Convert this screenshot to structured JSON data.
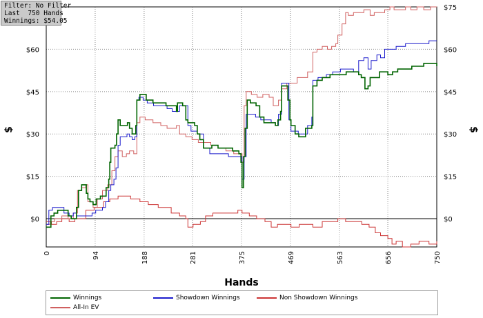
{
  "info": {
    "filter": "Filter: No Filter",
    "hands": "Last  750 Hands",
    "winnings": "Winnings: $54.05"
  },
  "chart_data": {
    "type": "line",
    "xlabel": "Hands",
    "ylabel": "$",
    "ylabel_right": "$",
    "xlim": [
      0,
      750
    ],
    "ylim": [
      -10,
      75
    ],
    "x_ticks": [
      0,
      94,
      188,
      281,
      375,
      469,
      563,
      656,
      750
    ],
    "y_ticks": [
      0,
      15,
      30,
      45,
      60,
      75
    ],
    "y_tick_labels": [
      "$0",
      "$15",
      "$30",
      "$45",
      "$60",
      "$75"
    ],
    "grid": true,
    "legend_position": "bottom",
    "series": [
      {
        "name": "Winnings",
        "color": "#006400",
        "points": [
          [
            0,
            -3
          ],
          [
            6,
            -3
          ],
          [
            9,
            1
          ],
          [
            15,
            2
          ],
          [
            22,
            3
          ],
          [
            38,
            3
          ],
          [
            42,
            1
          ],
          [
            48,
            0
          ],
          [
            55,
            0
          ],
          [
            58,
            4
          ],
          [
            62,
            10
          ],
          [
            68,
            12
          ],
          [
            74,
            12
          ],
          [
            77,
            9
          ],
          [
            80,
            7
          ],
          [
            84,
            6
          ],
          [
            90,
            5
          ],
          [
            96,
            7
          ],
          [
            104,
            8
          ],
          [
            110,
            8
          ],
          [
            115,
            11
          ],
          [
            120,
            14
          ],
          [
            122,
            20
          ],
          [
            124,
            25
          ],
          [
            132,
            26
          ],
          [
            135,
            30
          ],
          [
            138,
            35
          ],
          [
            142,
            33
          ],
          [
            150,
            33
          ],
          [
            156,
            34
          ],
          [
            160,
            32
          ],
          [
            165,
            30
          ],
          [
            168,
            30
          ],
          [
            172,
            33
          ],
          [
            174,
            42
          ],
          [
            180,
            44
          ],
          [
            186,
            44
          ],
          [
            192,
            42
          ],
          [
            205,
            41
          ],
          [
            218,
            41
          ],
          [
            230,
            40
          ],
          [
            242,
            40
          ],
          [
            250,
            38
          ],
          [
            252,
            41
          ],
          [
            262,
            40
          ],
          [
            268,
            35
          ],
          [
            272,
            34
          ],
          [
            285,
            33
          ],
          [
            290,
            30
          ],
          [
            295,
            28
          ],
          [
            300,
            28
          ],
          [
            302,
            25
          ],
          [
            312,
            25
          ],
          [
            318,
            26
          ],
          [
            326,
            26
          ],
          [
            330,
            25
          ],
          [
            345,
            25
          ],
          [
            358,
            24
          ],
          [
            370,
            23
          ],
          [
            374,
            20
          ],
          [
            376,
            11
          ],
          [
            379,
            22
          ],
          [
            382,
            32
          ],
          [
            386,
            42
          ],
          [
            392,
            41
          ],
          [
            403,
            40
          ],
          [
            410,
            36
          ],
          [
            418,
            34
          ],
          [
            432,
            34
          ],
          [
            440,
            33
          ],
          [
            445,
            35
          ],
          [
            450,
            38
          ],
          [
            452,
            47
          ],
          [
            460,
            47
          ],
          [
            464,
            42
          ],
          [
            468,
            35
          ],
          [
            470,
            33
          ],
          [
            474,
            33
          ],
          [
            478,
            30
          ],
          [
            485,
            29
          ],
          [
            492,
            29
          ],
          [
            498,
            32
          ],
          [
            505,
            32
          ],
          [
            510,
            33
          ],
          [
            512,
            47
          ],
          [
            520,
            49
          ],
          [
            530,
            50
          ],
          [
            545,
            51
          ],
          [
            560,
            51
          ],
          [
            576,
            52
          ],
          [
            590,
            52
          ],
          [
            600,
            51
          ],
          [
            605,
            50
          ],
          [
            612,
            46
          ],
          [
            618,
            47
          ],
          [
            622,
            50
          ],
          [
            640,
            52
          ],
          [
            648,
            52
          ],
          [
            656,
            51
          ],
          [
            665,
            52
          ],
          [
            675,
            53
          ],
          [
            690,
            53
          ],
          [
            702,
            54
          ],
          [
            715,
            54
          ],
          [
            725,
            55
          ],
          [
            738,
            55
          ],
          [
            745,
            55
          ],
          [
            750,
            54
          ]
        ]
      },
      {
        "name": "Showdown Winnings",
        "color": "#1a1acc",
        "points": [
          [
            0,
            -2
          ],
          [
            5,
            3
          ],
          [
            10,
            3
          ],
          [
            12,
            4
          ],
          [
            30,
            4
          ],
          [
            34,
            2
          ],
          [
            44,
            1
          ],
          [
            52,
            2
          ],
          [
            58,
            1
          ],
          [
            64,
            1
          ],
          [
            84,
            1
          ],
          [
            88,
            2
          ],
          [
            95,
            3
          ],
          [
            108,
            4
          ],
          [
            114,
            6
          ],
          [
            120,
            10
          ],
          [
            124,
            12
          ],
          [
            130,
            14
          ],
          [
            134,
            18
          ],
          [
            138,
            26
          ],
          [
            142,
            29
          ],
          [
            150,
            29
          ],
          [
            155,
            30
          ],
          [
            160,
            29
          ],
          [
            165,
            28
          ],
          [
            170,
            29
          ],
          [
            174,
            42
          ],
          [
            178,
            43
          ],
          [
            186,
            42
          ],
          [
            194,
            41
          ],
          [
            206,
            40
          ],
          [
            220,
            40
          ],
          [
            232,
            39
          ],
          [
            242,
            38
          ],
          [
            250,
            38
          ],
          [
            256,
            40
          ],
          [
            266,
            40
          ],
          [
            272,
            33
          ],
          [
            278,
            31
          ],
          [
            290,
            30
          ],
          [
            302,
            25
          ],
          [
            314,
            23
          ],
          [
            330,
            23
          ],
          [
            350,
            22
          ],
          [
            362,
            22
          ],
          [
            370,
            22
          ],
          [
            376,
            14
          ],
          [
            380,
            22
          ],
          [
            384,
            37
          ],
          [
            390,
            37
          ],
          [
            402,
            36
          ],
          [
            412,
            35
          ],
          [
            420,
            35
          ],
          [
            432,
            34
          ],
          [
            440,
            33
          ],
          [
            446,
            37
          ],
          [
            452,
            48
          ],
          [
            460,
            48
          ],
          [
            466,
            35
          ],
          [
            470,
            31
          ],
          [
            476,
            31
          ],
          [
            484,
            30
          ],
          [
            496,
            30
          ],
          [
            502,
            33
          ],
          [
            510,
            36
          ],
          [
            512,
            49
          ],
          [
            522,
            50
          ],
          [
            538,
            51
          ],
          [
            550,
            52
          ],
          [
            565,
            53
          ],
          [
            578,
            53
          ],
          [
            590,
            52
          ],
          [
            600,
            56
          ],
          [
            610,
            57
          ],
          [
            618,
            53
          ],
          [
            624,
            56
          ],
          [
            635,
            58
          ],
          [
            642,
            57
          ],
          [
            650,
            60
          ],
          [
            660,
            60
          ],
          [
            672,
            61
          ],
          [
            690,
            62
          ],
          [
            705,
            62
          ],
          [
            720,
            62
          ],
          [
            735,
            63
          ],
          [
            750,
            63
          ]
        ]
      },
      {
        "name": "Non Showdown Winnings",
        "color": "#cc3333",
        "points": [
          [
            0,
            -1
          ],
          [
            10,
            -2
          ],
          [
            20,
            -1
          ],
          [
            30,
            0
          ],
          [
            44,
            -1
          ],
          [
            55,
            0
          ],
          [
            70,
            0
          ],
          [
            76,
            3
          ],
          [
            92,
            4
          ],
          [
            110,
            6
          ],
          [
            122,
            7
          ],
          [
            138,
            8
          ],
          [
            150,
            8
          ],
          [
            162,
            7
          ],
          [
            180,
            6
          ],
          [
            196,
            5
          ],
          [
            215,
            4
          ],
          [
            240,
            2
          ],
          [
            256,
            1
          ],
          [
            268,
            0
          ],
          [
            272,
            -3
          ],
          [
            282,
            -2
          ],
          [
            296,
            -1
          ],
          [
            306,
            1
          ],
          [
            320,
            2
          ],
          [
            338,
            2
          ],
          [
            352,
            2
          ],
          [
            368,
            3
          ],
          [
            376,
            2
          ],
          [
            390,
            1
          ],
          [
            404,
            0
          ],
          [
            420,
            -1
          ],
          [
            432,
            -3
          ],
          [
            444,
            -2
          ],
          [
            458,
            -2
          ],
          [
            470,
            -3
          ],
          [
            486,
            -2
          ],
          [
            500,
            -2
          ],
          [
            512,
            -3
          ],
          [
            530,
            -1
          ],
          [
            545,
            -1
          ],
          [
            560,
            0
          ],
          [
            575,
            -1
          ],
          [
            592,
            -1
          ],
          [
            606,
            -2
          ],
          [
            620,
            -3
          ],
          [
            632,
            -5
          ],
          [
            642,
            -6
          ],
          [
            656,
            -7
          ],
          [
            664,
            -9
          ],
          [
            672,
            -8
          ],
          [
            684,
            -10
          ],
          [
            700,
            -9
          ],
          [
            716,
            -8
          ],
          [
            735,
            -9
          ],
          [
            750,
            -8
          ]
        ]
      },
      {
        "name": "All-In EV",
        "color": "#d06060",
        "points": [
          [
            0,
            -2
          ],
          [
            8,
            -1
          ],
          [
            16,
            0
          ],
          [
            30,
            1
          ],
          [
            42,
            0
          ],
          [
            52,
            2
          ],
          [
            60,
            10
          ],
          [
            68,
            11
          ],
          [
            76,
            12
          ],
          [
            80,
            6
          ],
          [
            90,
            4
          ],
          [
            98,
            7
          ],
          [
            108,
            10
          ],
          [
            118,
            12
          ],
          [
            126,
            17
          ],
          [
            132,
            22
          ],
          [
            138,
            24
          ],
          [
            146,
            22
          ],
          [
            154,
            23
          ],
          [
            160,
            24
          ],
          [
            168,
            23
          ],
          [
            174,
            34
          ],
          [
            180,
            36
          ],
          [
            190,
            35
          ],
          [
            205,
            34
          ],
          [
            220,
            33
          ],
          [
            232,
            32
          ],
          [
            244,
            32
          ],
          [
            250,
            33
          ],
          [
            256,
            30
          ],
          [
            268,
            29
          ],
          [
            280,
            28
          ],
          [
            292,
            27
          ],
          [
            302,
            27
          ],
          [
            316,
            26
          ],
          [
            330,
            25
          ],
          [
            345,
            24
          ],
          [
            360,
            23
          ],
          [
            372,
            23
          ],
          [
            376,
            20
          ],
          [
            380,
            40
          ],
          [
            384,
            45
          ],
          [
            394,
            44
          ],
          [
            405,
            43
          ],
          [
            416,
            44
          ],
          [
            428,
            43
          ],
          [
            436,
            40
          ],
          [
            446,
            42
          ],
          [
            452,
            46
          ],
          [
            462,
            48
          ],
          [
            472,
            48
          ],
          [
            482,
            50
          ],
          [
            492,
            50
          ],
          [
            502,
            52
          ],
          [
            512,
            59
          ],
          [
            520,
            60
          ],
          [
            530,
            61
          ],
          [
            540,
            60
          ],
          [
            548,
            61
          ],
          [
            556,
            62
          ],
          [
            560,
            65
          ],
          [
            568,
            69
          ],
          [
            575,
            73
          ],
          [
            580,
            72
          ],
          [
            590,
            73
          ],
          [
            600,
            73
          ],
          [
            610,
            74
          ],
          [
            616,
            74
          ],
          [
            622,
            72
          ],
          [
            630,
            73
          ],
          [
            640,
            73
          ],
          [
            650,
            74
          ],
          [
            660,
            75
          ],
          [
            668,
            74
          ],
          [
            680,
            74
          ],
          [
            690,
            75
          ],
          [
            700,
            74
          ],
          [
            712,
            75
          ],
          [
            725,
            74
          ],
          [
            738,
            75
          ],
          [
            750,
            75
          ]
        ]
      }
    ]
  },
  "colors": {
    "grid": "#8a8a8a",
    "zero_line": "#000000",
    "background": "#ffffff"
  }
}
